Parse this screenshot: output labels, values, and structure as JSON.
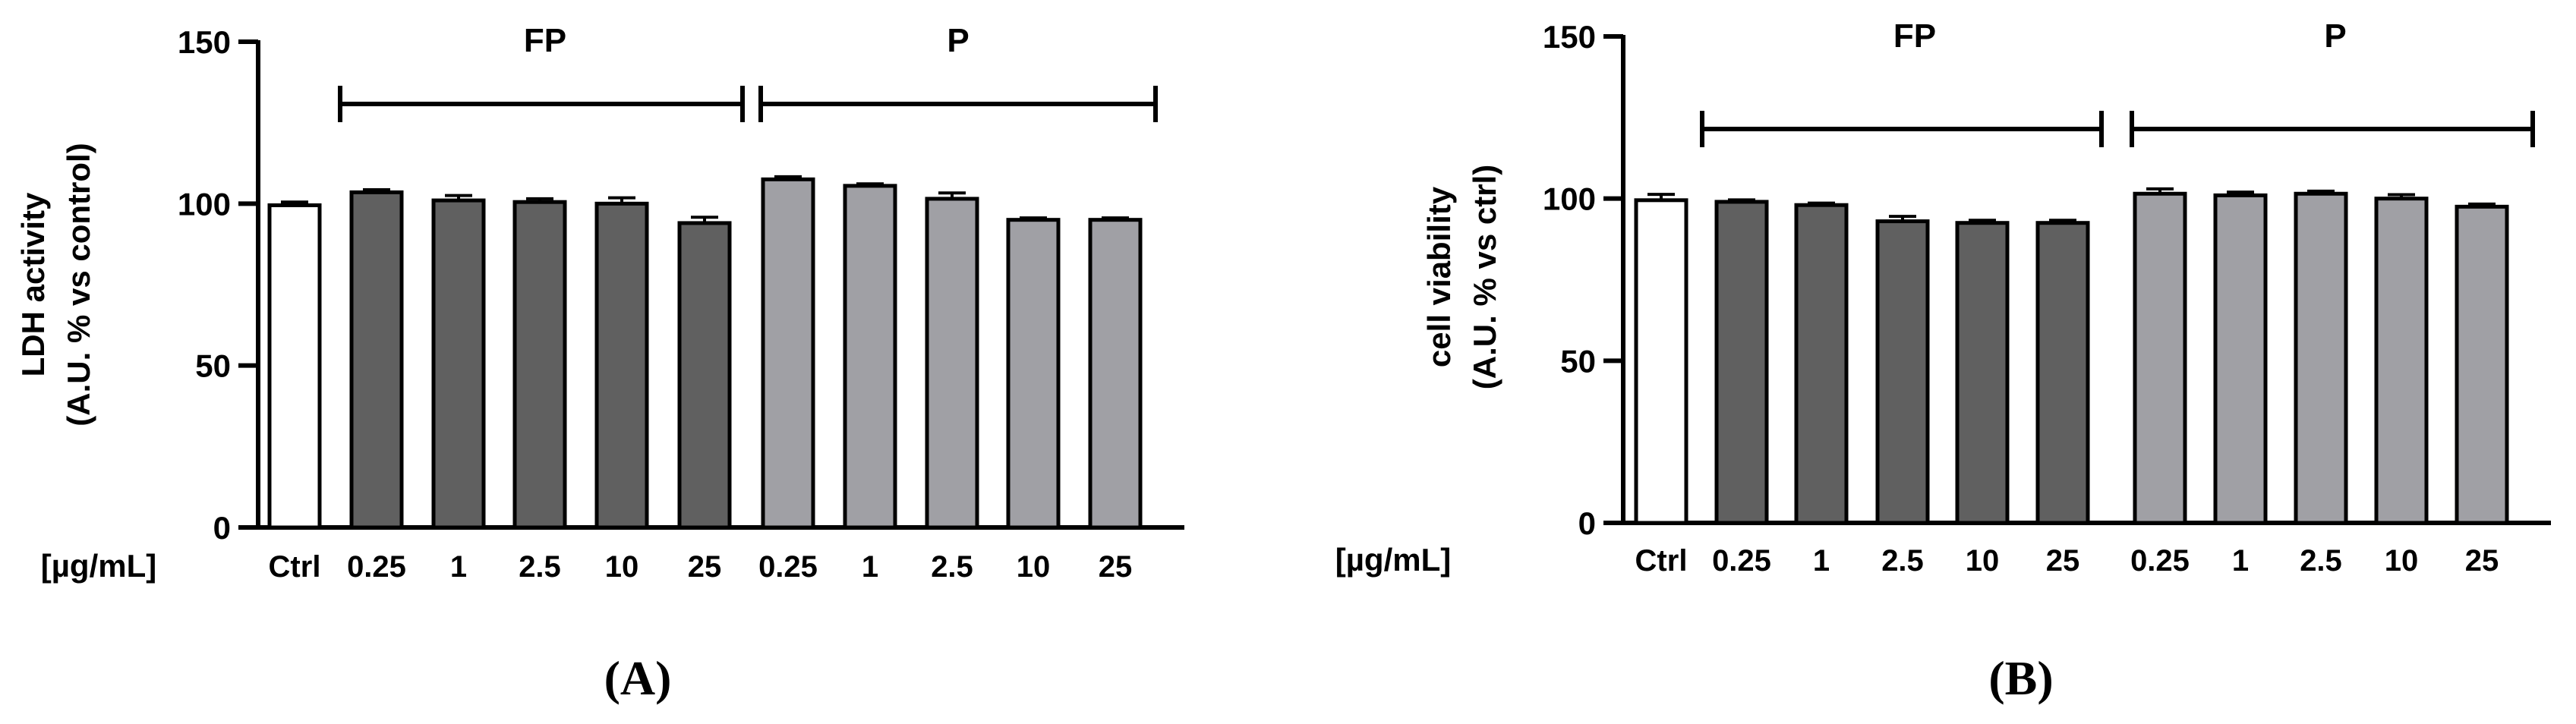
{
  "chart_data": [
    {
      "type": "bar",
      "panel_label": "(A)",
      "ylabel_line1": "LDH activity",
      "ylabel_line2": "(A.U. % vs control)",
      "xlabel_prefix": "[µg/mL]",
      "ylim": [
        0,
        150
      ],
      "yticks": [
        "0",
        "50",
        "100",
        "150"
      ],
      "categories": [
        "Ctrl",
        "0.25",
        "1",
        "2.5",
        "10",
        "25",
        "0.25",
        "1",
        "2.5",
        "10",
        "25"
      ],
      "values": [
        99.5,
        103.5,
        101,
        100.5,
        100,
        94,
        107.5,
        105.5,
        101.5,
        95,
        95
      ],
      "errors": [
        1,
        0.8,
        1.5,
        1,
        1.8,
        1.8,
        0.8,
        0.6,
        1.8,
        0.6,
        0.6
      ],
      "groups": [
        "ctrl",
        "FP",
        "FP",
        "FP",
        "FP",
        "FP",
        "P",
        "P",
        "P",
        "P",
        "P"
      ],
      "brackets": [
        {
          "label": "FP",
          "from": 1,
          "to": 5
        },
        {
          "label": "P",
          "from": 6,
          "to": 10
        }
      ],
      "colors": {
        "ctrl": "#ffffff",
        "FP": "#606060",
        "P": "#a0a0a5"
      }
    },
    {
      "type": "bar",
      "panel_label": "(B)",
      "ylabel_line1": "cell viability",
      "ylabel_line2": "(A.U. % vs ctrl)",
      "xlabel_prefix": "[µg/mL]",
      "ylim": [
        0,
        150
      ],
      "yticks": [
        "0",
        "50",
        "100",
        "150"
      ],
      "categories": [
        "Ctrl",
        "0.25",
        "1",
        "2.5",
        "10",
        "25",
        "0.25",
        "1",
        "2.5",
        "10",
        "25"
      ],
      "values": [
        99.5,
        99,
        98,
        93,
        92.5,
        92.5,
        101.5,
        101,
        101.5,
        100,
        97.5
      ],
      "errors": [
        1.8,
        0.6,
        0.6,
        1.5,
        0.8,
        0.8,
        1.5,
        1,
        0.8,
        1.2,
        0.8
      ],
      "groups": [
        "ctrl",
        "FP",
        "FP",
        "FP",
        "FP",
        "FP",
        "P",
        "P",
        "P",
        "P",
        "P"
      ],
      "brackets": [
        {
          "label": "FP",
          "from": 1,
          "to": 5
        },
        {
          "label": "P",
          "from": 6,
          "to": 10
        }
      ],
      "colors": {
        "ctrl": "#ffffff",
        "FP": "#606060",
        "P": "#a0a0a5"
      }
    }
  ]
}
